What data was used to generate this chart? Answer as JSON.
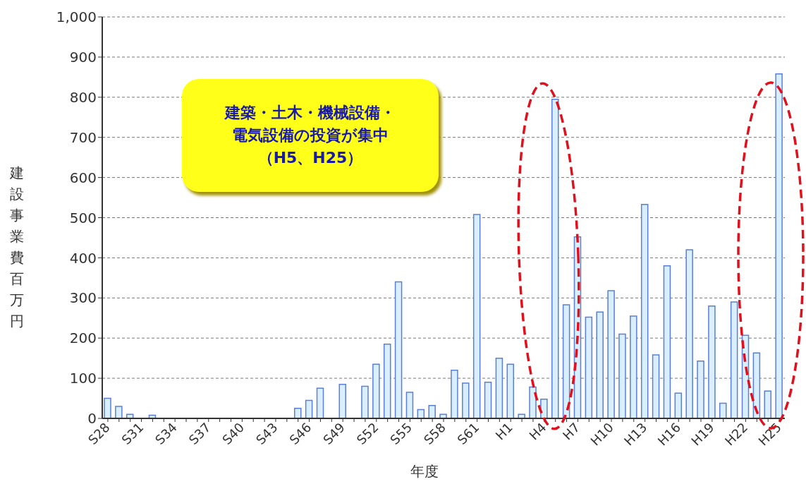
{
  "chart_data": {
    "type": "bar",
    "categories": [
      "S28",
      null,
      null,
      "S31",
      null,
      null,
      "S34",
      null,
      null,
      "S37",
      null,
      null,
      "S40",
      null,
      null,
      "S43",
      null,
      null,
      "S46",
      null,
      null,
      "S49",
      null,
      null,
      "S52",
      null,
      null,
      "S55",
      null,
      null,
      "S58",
      null,
      null,
      "S61",
      null,
      null,
      "H1",
      null,
      null,
      "H4",
      null,
      null,
      "H7",
      null,
      null,
      "H10",
      null,
      null,
      "H13",
      null,
      null,
      "H16",
      null,
      null,
      "H19",
      null,
      null,
      "H22",
      null,
      null,
      "H25"
    ],
    "values": [
      50,
      30,
      10,
      0,
      8,
      0,
      0,
      0,
      0,
      0,
      0,
      0,
      0,
      0,
      0,
      0,
      0,
      25,
      45,
      75,
      0,
      85,
      0,
      80,
      135,
      185,
      340,
      65,
      22,
      32,
      10,
      120,
      88,
      508,
      90,
      150,
      135,
      10,
      78,
      48,
      795,
      283,
      452,
      252,
      265,
      318,
      210,
      255,
      533,
      158,
      380,
      63,
      420,
      143,
      280,
      38,
      290,
      207,
      163,
      68,
      858
    ],
    "color": "#d9eeff",
    "xlabel": "年度",
    "ylabel": "建設事業費百万円",
    "ylim": [
      0,
      1000
    ],
    "yticks": [
      0,
      100,
      200,
      300,
      400,
      500,
      600,
      700,
      800,
      900,
      {
        "value": 1000,
        "label": "1,000"
      }
    ],
    "grid": "y",
    "annotations": [
      "建築・土木・機械設備・電気設備の投資が集中（H5、H25）"
    ]
  }
}
